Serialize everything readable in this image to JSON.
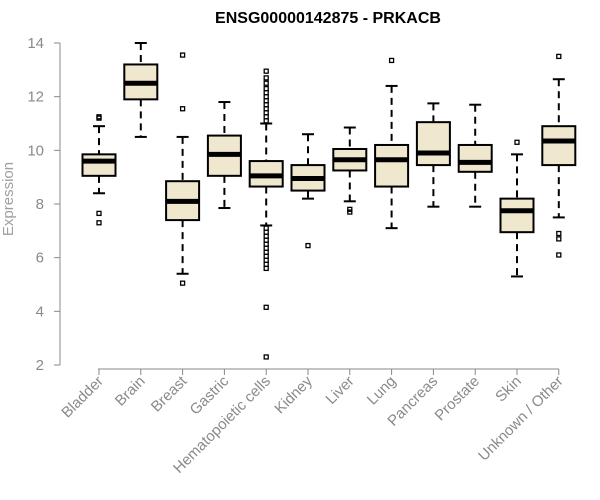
{
  "chart_data": {
    "type": "box",
    "title": "ENSG00000142875 - PRKACB",
    "xlabel": "",
    "ylabel": "Expression",
    "ylim": [
      2,
      14
    ],
    "yticks": [
      2,
      4,
      6,
      8,
      10,
      12,
      14
    ],
    "colors": {
      "box_fill": "#efe8cf",
      "stroke": "#000000",
      "axis": "#888888",
      "label": "#8a8a8a"
    },
    "categories": [
      "Bladder",
      "Brain",
      "Breast",
      "Gastric",
      "Hematopoietic cells",
      "Kidney",
      "Liver",
      "Lung",
      "Pancreas",
      "Prostate",
      "Skin",
      "Unknown / Other"
    ],
    "boxes": [
      {
        "category": "Bladder",
        "whisker_low": 8.4,
        "q1": 9.05,
        "median": 9.6,
        "q3": 9.85,
        "whisker_high": 10.9,
        "outliers": [
          7.3,
          7.65,
          11.2,
          11.25
        ]
      },
      {
        "category": "Brain",
        "whisker_low": 10.5,
        "q1": 11.9,
        "median": 12.5,
        "q3": 13.2,
        "whisker_high": 14.0,
        "outliers": []
      },
      {
        "category": "Breast",
        "whisker_low": 5.4,
        "q1": 7.4,
        "median": 8.1,
        "q3": 8.85,
        "whisker_high": 10.5,
        "outliers": [
          5.05,
          11.55,
          13.55
        ]
      },
      {
        "category": "Gastric",
        "whisker_low": 7.85,
        "q1": 9.05,
        "median": 9.85,
        "q3": 10.55,
        "whisker_high": 11.8,
        "outliers": []
      },
      {
        "category": "Hematopoietic cells",
        "whisker_low": 7.2,
        "q1": 8.65,
        "median": 9.05,
        "q3": 9.6,
        "whisker_high": 11.0,
        "outliers": [
          2.3,
          4.15,
          5.6,
          5.75,
          5.9,
          6.05,
          6.2,
          6.35,
          6.5,
          6.65,
          6.8,
          6.95,
          7.1,
          11.1,
          11.25,
          11.4,
          11.55,
          11.7,
          11.85,
          12.0,
          12.15,
          12.3,
          12.5,
          12.7,
          12.95
        ]
      },
      {
        "category": "Kidney",
        "whisker_low": 8.2,
        "q1": 8.5,
        "median": 8.95,
        "q3": 9.45,
        "whisker_high": 10.6,
        "outliers": [
          6.45
        ]
      },
      {
        "category": "Liver",
        "whisker_low": 8.1,
        "q1": 9.25,
        "median": 9.65,
        "q3": 10.05,
        "whisker_high": 10.85,
        "outliers": [
          7.7,
          7.8
        ]
      },
      {
        "category": "Lung",
        "whisker_low": 7.1,
        "q1": 8.65,
        "median": 9.65,
        "q3": 10.2,
        "whisker_high": 12.4,
        "outliers": [
          13.35
        ]
      },
      {
        "category": "Pancreas",
        "whisker_low": 7.9,
        "q1": 9.45,
        "median": 9.9,
        "q3": 11.05,
        "whisker_high": 11.75,
        "outliers": []
      },
      {
        "category": "Prostate",
        "whisker_low": 7.9,
        "q1": 9.2,
        "median": 9.55,
        "q3": 10.2,
        "whisker_high": 11.7,
        "outliers": []
      },
      {
        "category": "Skin",
        "whisker_low": 5.3,
        "q1": 6.95,
        "median": 7.75,
        "q3": 8.2,
        "whisker_high": 9.85,
        "outliers": [
          10.3
        ]
      },
      {
        "category": "Unknown / Other",
        "whisker_low": 7.5,
        "q1": 9.45,
        "median": 10.35,
        "q3": 10.9,
        "whisker_high": 12.65,
        "outliers": [
          6.1,
          6.7,
          6.9,
          13.5
        ]
      }
    ]
  }
}
